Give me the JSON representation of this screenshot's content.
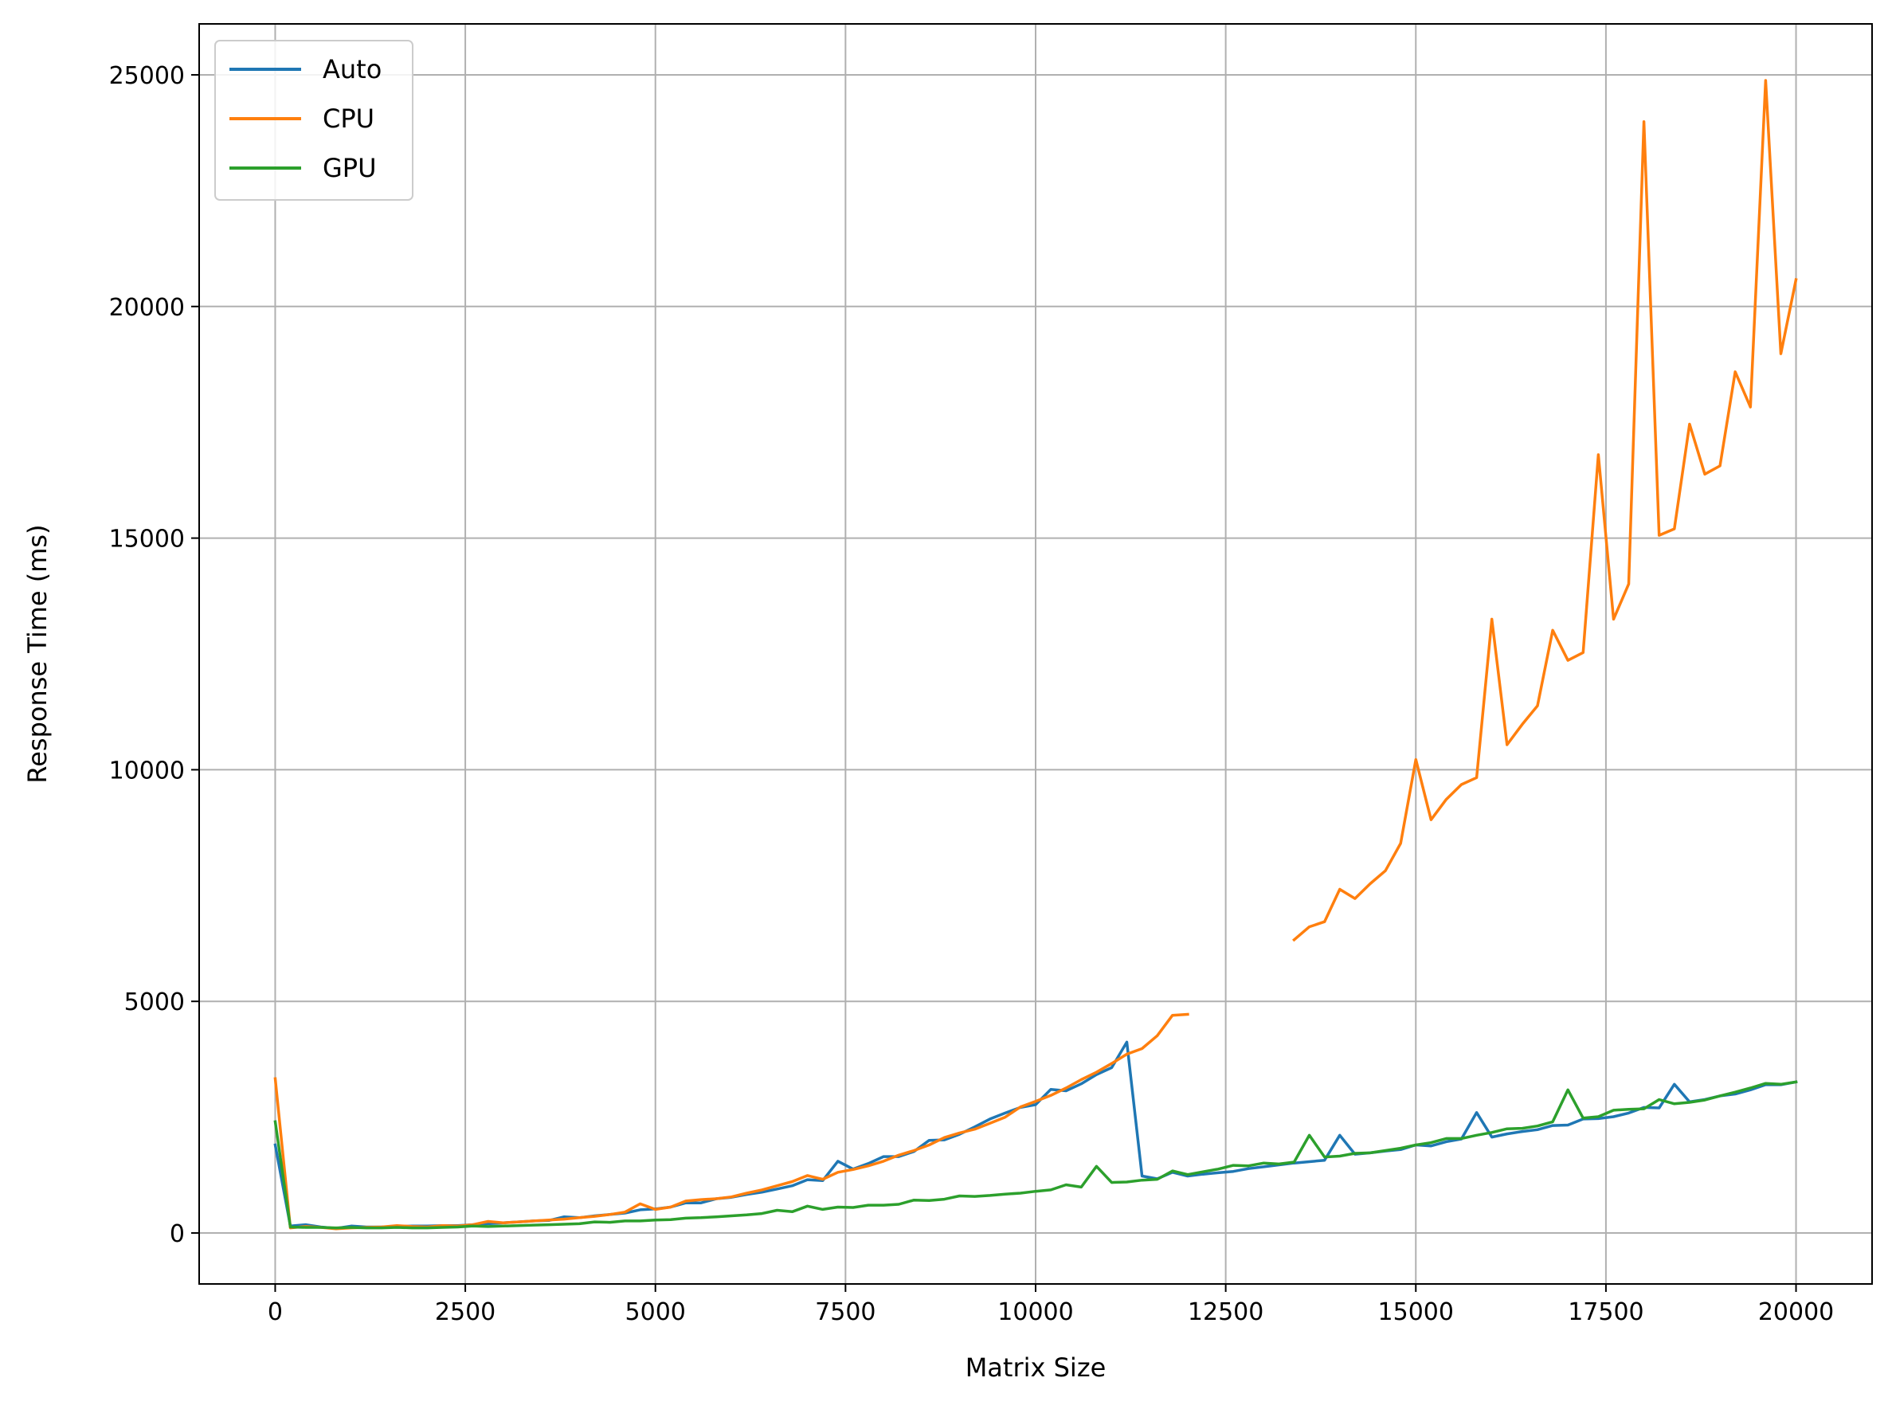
{
  "chart_data": {
    "type": "line",
    "title": "",
    "xlabel": "Matrix Size",
    "ylabel": "Response Time (ms)",
    "xlim": [
      -1000,
      21000
    ],
    "ylim": [
      -1100,
      26100
    ],
    "xticks": [
      0,
      2500,
      5000,
      7500,
      10000,
      12500,
      15000,
      17500,
      20000
    ],
    "yticks": [
      0,
      5000,
      10000,
      15000,
      20000,
      25000
    ],
    "grid": true,
    "legend_position": "top-left",
    "series": [
      {
        "name": "Auto",
        "color": "#1f77b4",
        "points": [
          [
            0,
            1900
          ],
          [
            200,
            150
          ],
          [
            400,
            180
          ],
          [
            600,
            130
          ],
          [
            800,
            100
          ],
          [
            1000,
            150
          ],
          [
            1200,
            130
          ],
          [
            1400,
            130
          ],
          [
            1600,
            140
          ],
          [
            1800,
            150
          ],
          [
            2000,
            150
          ],
          [
            2200,
            160
          ],
          [
            2400,
            160
          ],
          [
            2600,
            180
          ],
          [
            2800,
            200
          ],
          [
            3000,
            220
          ],
          [
            3200,
            240
          ],
          [
            3400,
            260
          ],
          [
            3600,
            270
          ],
          [
            3800,
            350
          ],
          [
            4000,
            330
          ],
          [
            4200,
            370
          ],
          [
            4400,
            400
          ],
          [
            4600,
            430
          ],
          [
            4800,
            500
          ],
          [
            5000,
            520
          ],
          [
            5200,
            560
          ],
          [
            5400,
            650
          ],
          [
            5600,
            650
          ],
          [
            5800,
            740
          ],
          [
            6000,
            770
          ],
          [
            6200,
            830
          ],
          [
            6400,
            880
          ],
          [
            6600,
            950
          ],
          [
            6800,
            1020
          ],
          [
            7000,
            1150
          ],
          [
            7200,
            1130
          ],
          [
            7400,
            1550
          ],
          [
            7600,
            1380
          ],
          [
            7800,
            1500
          ],
          [
            8000,
            1650
          ],
          [
            8200,
            1650
          ],
          [
            8400,
            1760
          ],
          [
            8600,
            2000
          ],
          [
            8800,
            2010
          ],
          [
            9000,
            2130
          ],
          [
            9200,
            2290
          ],
          [
            9400,
            2460
          ],
          [
            9600,
            2590
          ],
          [
            9800,
            2710
          ],
          [
            10000,
            2770
          ],
          [
            10200,
            3100
          ],
          [
            10400,
            3070
          ],
          [
            10600,
            3220
          ],
          [
            10800,
            3420
          ],
          [
            11000,
            3570
          ],
          [
            11200,
            4120
          ],
          [
            11400,
            1230
          ],
          [
            11600,
            1170
          ],
          [
            11800,
            1310
          ],
          [
            12000,
            1230
          ],
          [
            12200,
            1270
          ],
          [
            12400,
            1300
          ],
          [
            12600,
            1330
          ],
          [
            12800,
            1390
          ],
          [
            13000,
            1430
          ],
          [
            13200,
            1470
          ],
          [
            13400,
            1510
          ],
          [
            13600,
            1540
          ],
          [
            13800,
            1570
          ],
          [
            14000,
            2110
          ],
          [
            14200,
            1700
          ],
          [
            14400,
            1730
          ],
          [
            14600,
            1770
          ],
          [
            14800,
            1800
          ],
          [
            15000,
            1900
          ],
          [
            15200,
            1880
          ],
          [
            15400,
            1970
          ],
          [
            15600,
            2030
          ],
          [
            15800,
            2600
          ],
          [
            16000,
            2070
          ],
          [
            16200,
            2140
          ],
          [
            16400,
            2190
          ],
          [
            16600,
            2230
          ],
          [
            16800,
            2320
          ],
          [
            17000,
            2330
          ],
          [
            17200,
            2460
          ],
          [
            17400,
            2470
          ],
          [
            17600,
            2510
          ],
          [
            17800,
            2590
          ],
          [
            18000,
            2710
          ],
          [
            18200,
            2700
          ],
          [
            18400,
            3210
          ],
          [
            18600,
            2830
          ],
          [
            18800,
            2880
          ],
          [
            19000,
            2960
          ],
          [
            19200,
            3000
          ],
          [
            19400,
            3090
          ],
          [
            19600,
            3200
          ],
          [
            19800,
            3200
          ],
          [
            20000,
            3260
          ]
        ]
      },
      {
        "name": "CPU",
        "color": "#ff7f0e",
        "points": [
          [
            0,
            3330
          ],
          [
            200,
            110
          ],
          [
            400,
            140
          ],
          [
            600,
            120
          ],
          [
            800,
            90
          ],
          [
            1000,
            110
          ],
          [
            1200,
            120
          ],
          [
            1400,
            130
          ],
          [
            1600,
            160
          ],
          [
            1800,
            140
          ],
          [
            2000,
            130
          ],
          [
            2200,
            160
          ],
          [
            2400,
            150
          ],
          [
            2600,
            180
          ],
          [
            2800,
            250
          ],
          [
            3000,
            220
          ],
          [
            3200,
            240
          ],
          [
            3400,
            260
          ],
          [
            3600,
            280
          ],
          [
            3800,
            300
          ],
          [
            4000,
            330
          ],
          [
            4200,
            360
          ],
          [
            4400,
            400
          ],
          [
            4600,
            450
          ],
          [
            4800,
            630
          ],
          [
            5000,
            510
          ],
          [
            5200,
            560
          ],
          [
            5400,
            690
          ],
          [
            5600,
            720
          ],
          [
            5800,
            740
          ],
          [
            6000,
            780
          ],
          [
            6200,
            860
          ],
          [
            6400,
            930
          ],
          [
            6600,
            1020
          ],
          [
            6800,
            1110
          ],
          [
            7000,
            1240
          ],
          [
            7200,
            1160
          ],
          [
            7400,
            1310
          ],
          [
            7600,
            1370
          ],
          [
            7800,
            1450
          ],
          [
            8000,
            1550
          ],
          [
            8200,
            1680
          ],
          [
            8400,
            1780
          ],
          [
            8600,
            1900
          ],
          [
            8800,
            2060
          ],
          [
            9000,
            2160
          ],
          [
            9200,
            2240
          ],
          [
            9400,
            2370
          ],
          [
            9600,
            2500
          ],
          [
            9800,
            2720
          ],
          [
            10000,
            2840
          ],
          [
            10200,
            2970
          ],
          [
            10400,
            3130
          ],
          [
            10600,
            3310
          ],
          [
            10800,
            3470
          ],
          [
            11000,
            3660
          ],
          [
            11200,
            3860
          ],
          [
            11400,
            3980
          ],
          [
            11600,
            4260
          ],
          [
            11800,
            4700
          ],
          [
            12000,
            4720
          ],
          [
            12200,
            null
          ],
          [
            13400,
            6330
          ],
          [
            13600,
            6610
          ],
          [
            13800,
            6720
          ],
          [
            14000,
            7420
          ],
          [
            14200,
            7220
          ],
          [
            14400,
            7540
          ],
          [
            14600,
            7820
          ],
          [
            14800,
            8410
          ],
          [
            15000,
            10220
          ],
          [
            15200,
            8920
          ],
          [
            15400,
            9360
          ],
          [
            15600,
            9680
          ],
          [
            15800,
            9830
          ],
          [
            16000,
            13250
          ],
          [
            16200,
            10540
          ],
          [
            16400,
            10980
          ],
          [
            16600,
            11380
          ],
          [
            16800,
            13010
          ],
          [
            17000,
            12360
          ],
          [
            17200,
            12530
          ],
          [
            17400,
            16800
          ],
          [
            17600,
            13250
          ],
          [
            17800,
            14010
          ],
          [
            18000,
            23990
          ],
          [
            18200,
            15060
          ],
          [
            18400,
            15200
          ],
          [
            18600,
            17460
          ],
          [
            18800,
            16380
          ],
          [
            19000,
            16560
          ],
          [
            19200,
            18590
          ],
          [
            19400,
            17830
          ],
          [
            19600,
            24880
          ],
          [
            19800,
            18980
          ],
          [
            20000,
            20580
          ]
        ]
      },
      {
        "name": "GPU",
        "color": "#2ca02c",
        "points": [
          [
            0,
            2400
          ],
          [
            200,
            130
          ],
          [
            400,
            120
          ],
          [
            600,
            120
          ],
          [
            800,
            110
          ],
          [
            1000,
            120
          ],
          [
            1200,
            110
          ],
          [
            1400,
            110
          ],
          [
            1600,
            120
          ],
          [
            1800,
            110
          ],
          [
            2000,
            110
          ],
          [
            2200,
            120
          ],
          [
            2400,
            130
          ],
          [
            2600,
            150
          ],
          [
            2800,
            140
          ],
          [
            3000,
            150
          ],
          [
            3200,
            160
          ],
          [
            3400,
            170
          ],
          [
            3600,
            180
          ],
          [
            3800,
            190
          ],
          [
            4000,
            200
          ],
          [
            4200,
            240
          ],
          [
            4400,
            230
          ],
          [
            4600,
            260
          ],
          [
            4800,
            260
          ],
          [
            5000,
            280
          ],
          [
            5200,
            290
          ],
          [
            5400,
            320
          ],
          [
            5600,
            330
          ],
          [
            5800,
            350
          ],
          [
            6000,
            370
          ],
          [
            6200,
            390
          ],
          [
            6400,
            420
          ],
          [
            6600,
            490
          ],
          [
            6800,
            460
          ],
          [
            7000,
            580
          ],
          [
            7200,
            510
          ],
          [
            7400,
            560
          ],
          [
            7600,
            550
          ],
          [
            7800,
            600
          ],
          [
            8000,
            600
          ],
          [
            8200,
            620
          ],
          [
            8400,
            710
          ],
          [
            8600,
            700
          ],
          [
            8800,
            730
          ],
          [
            9000,
            800
          ],
          [
            9200,
            790
          ],
          [
            9400,
            810
          ],
          [
            9600,
            840
          ],
          [
            9800,
            860
          ],
          [
            10000,
            900
          ],
          [
            10200,
            930
          ],
          [
            10400,
            1040
          ],
          [
            10600,
            990
          ],
          [
            10800,
            1440
          ],
          [
            11000,
            1090
          ],
          [
            11200,
            1100
          ],
          [
            11400,
            1140
          ],
          [
            11600,
            1160
          ],
          [
            11800,
            1340
          ],
          [
            12000,
            1260
          ],
          [
            12200,
            1320
          ],
          [
            12400,
            1380
          ],
          [
            12600,
            1460
          ],
          [
            12800,
            1450
          ],
          [
            13000,
            1510
          ],
          [
            13200,
            1490
          ],
          [
            13400,
            1530
          ],
          [
            13600,
            2110
          ],
          [
            13800,
            1640
          ],
          [
            14000,
            1660
          ],
          [
            14200,
            1720
          ],
          [
            14400,
            1730
          ],
          [
            14600,
            1780
          ],
          [
            14800,
            1830
          ],
          [
            15000,
            1900
          ],
          [
            15200,
            1950
          ],
          [
            15400,
            2040
          ],
          [
            15600,
            2040
          ],
          [
            15800,
            2110
          ],
          [
            16000,
            2170
          ],
          [
            16200,
            2250
          ],
          [
            16400,
            2260
          ],
          [
            16600,
            2310
          ],
          [
            16800,
            2400
          ],
          [
            17000,
            3090
          ],
          [
            17200,
            2480
          ],
          [
            17400,
            2510
          ],
          [
            17600,
            2650
          ],
          [
            17800,
            2670
          ],
          [
            18000,
            2680
          ],
          [
            18200,
            2880
          ],
          [
            18400,
            2790
          ],
          [
            18600,
            2820
          ],
          [
            18800,
            2870
          ],
          [
            19000,
            2960
          ],
          [
            19200,
            3040
          ],
          [
            19400,
            3130
          ],
          [
            19600,
            3230
          ],
          [
            19800,
            3210
          ],
          [
            20000,
            3260
          ]
        ]
      }
    ]
  }
}
